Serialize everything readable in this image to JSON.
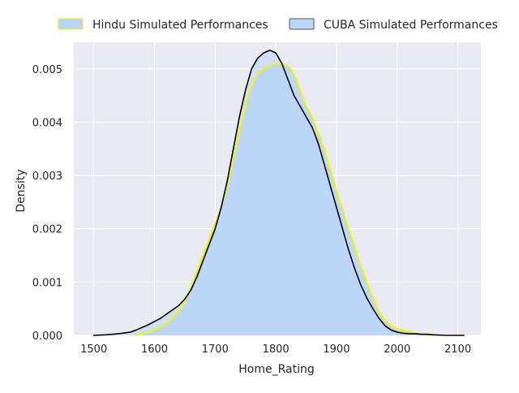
{
  "chart_data": {
    "type": "area",
    "xlabel": "Home_Rating",
    "ylabel": "Density",
    "xlim": [
      1467,
      2138
    ],
    "ylim": [
      0,
      0.0055
    ],
    "x_ticks": [
      1500,
      1600,
      1700,
      1800,
      1900,
      2000,
      2100
    ],
    "y_ticks": [
      0,
      0.001,
      0.002,
      0.003,
      0.004,
      0.005
    ],
    "x_tick_labels": [
      "1500",
      "1600",
      "1700",
      "1800",
      "1900",
      "2000",
      "2100"
    ],
    "y_tick_labels": [
      "0.000",
      "0.001",
      "0.002",
      "0.003",
      "0.004",
      "0.005"
    ],
    "grid": true,
    "legend_position": "top",
    "background_color": "#e9e9f1",
    "series": [
      {
        "name": "Hindu Simulated Performances",
        "fill_color": "#b9d6f7",
        "line_color": "#f2f20a",
        "x": [
          1570,
          1580,
          1590,
          1600,
          1610,
          1620,
          1630,
          1640,
          1650,
          1660,
          1670,
          1680,
          1690,
          1700,
          1710,
          1720,
          1730,
          1740,
          1750,
          1760,
          1770,
          1780,
          1790,
          1800,
          1810,
          1820,
          1830,
          1840,
          1850,
          1860,
          1870,
          1880,
          1890,
          1900,
          1910,
          1920,
          1930,
          1940,
          1950,
          1960,
          1970,
          1980,
          1990,
          2000,
          2010,
          2020,
          2030,
          2040,
          2050,
          2060
        ],
        "y": [
          0.0,
          3e-05,
          6e-05,
          0.0001,
          0.00015,
          0.00022,
          0.00032,
          0.00045,
          0.0006,
          0.0009,
          0.0012,
          0.0015,
          0.0018,
          0.0021,
          0.0024,
          0.0028,
          0.0033,
          0.0038,
          0.0043,
          0.0047,
          0.0049,
          0.005,
          0.00505,
          0.0051,
          0.0051,
          0.00505,
          0.0049,
          0.0046,
          0.0043,
          0.0041,
          0.0038,
          0.0035,
          0.0031,
          0.0027,
          0.00235,
          0.002,
          0.00165,
          0.0013,
          0.001,
          0.0007,
          0.00045,
          0.00028,
          0.00018,
          0.00012,
          9e-05,
          7e-05,
          4e-05,
          2e-05,
          1e-05,
          0.0
        ]
      },
      {
        "name": "CUBA Simulated Performances",
        "fill_color": "#b9d6f7",
        "line_color": "#000000",
        "x": [
          1500,
          1520,
          1540,
          1560,
          1570,
          1580,
          1590,
          1600,
          1610,
          1620,
          1630,
          1640,
          1650,
          1660,
          1670,
          1680,
          1690,
          1700,
          1710,
          1720,
          1730,
          1740,
          1750,
          1760,
          1770,
          1780,
          1790,
          1800,
          1810,
          1820,
          1830,
          1840,
          1850,
          1860,
          1870,
          1880,
          1890,
          1900,
          1910,
          1920,
          1930,
          1940,
          1950,
          1960,
          1970,
          1980,
          1990,
          2000,
          2010,
          2020,
          2030,
          2040,
          2050,
          2060,
          2080,
          2100,
          2110
        ],
        "y": [
          0.0,
          1e-05,
          3e-05,
          6e-05,
          0.0001,
          0.00015,
          0.0002,
          0.00026,
          0.00032,
          0.0004,
          0.00048,
          0.00056,
          0.00068,
          0.00085,
          0.0011,
          0.0014,
          0.0017,
          0.002,
          0.0024,
          0.0029,
          0.0035,
          0.0041,
          0.0046,
          0.005,
          0.0052,
          0.0053,
          0.00535,
          0.0053,
          0.0051,
          0.0048,
          0.0045,
          0.0043,
          0.0041,
          0.0039,
          0.0036,
          0.0032,
          0.0028,
          0.0024,
          0.002,
          0.0016,
          0.00125,
          0.00095,
          0.0007,
          0.0005,
          0.00032,
          0.00018,
          0.0001,
          6e-05,
          4e-05,
          3e-05,
          3e-05,
          2e-05,
          2e-05,
          1e-05,
          0.0,
          0.0,
          0.0
        ]
      }
    ]
  }
}
